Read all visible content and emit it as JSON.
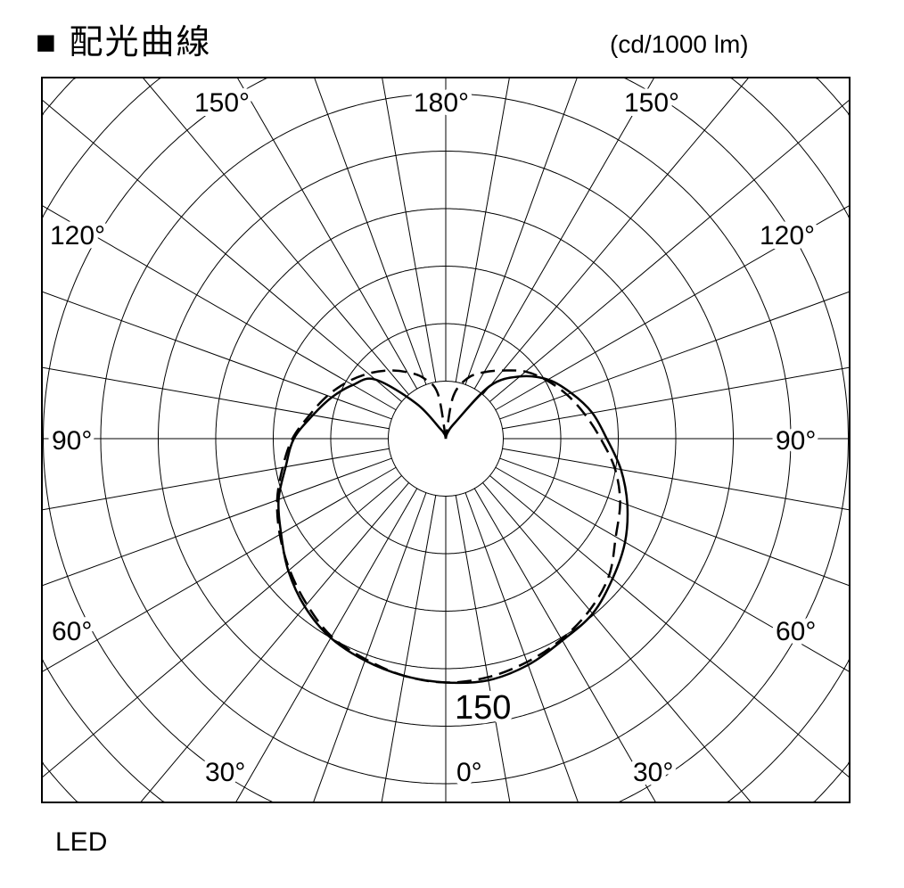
{
  "title": "■ 配光曲線",
  "unit": "(cd/1000 lm)",
  "note": "LED",
  "chart_data": {
    "type": "polar-line",
    "title": "配光曲線",
    "unit": "cd/1000 lm",
    "radial_tick_label": "150",
    "radial_tick_value": 150,
    "ring_step": 37.5,
    "angle_labels": {
      "top": [
        "150°",
        "180°",
        "150°"
      ],
      "left": [
        "120°",
        "90°",
        "60°"
      ],
      "right": [
        "120°",
        "90°",
        "60°"
      ],
      "bottom": [
        "30°",
        "0°",
        "30°"
      ]
    },
    "angle_grid_step_deg": 10,
    "grid": true,
    "angles": [
      0,
      10,
      20,
      30,
      40,
      50,
      60,
      70,
      80,
      90,
      100,
      110,
      120,
      130,
      140,
      150,
      160,
      170,
      180
    ],
    "series": [
      {
        "style": "solid",
        "color": "#000000",
        "left": [
          159,
          157,
          154,
          150,
          143,
          134,
          124,
          116,
          106,
          99,
          88,
          79,
          70,
          60,
          30,
          8,
          4,
          2,
          0
        ],
        "right": [
          159,
          160,
          157,
          152,
          149,
          142,
          135,
          126,
          116,
          105,
          97,
          87,
          77,
          63,
          45,
          12,
          5,
          2,
          0
        ]
      },
      {
        "style": "dashed",
        "color": "#000000",
        "left": [
          159,
          157,
          153,
          149,
          141,
          133,
          125,
          117,
          108,
          100,
          90,
          82,
          74,
          66,
          58,
          50,
          42,
          30,
          0
        ],
        "right": [
          159,
          158,
          155,
          151,
          146,
          139,
          128,
          121,
          112,
          101,
          92,
          84,
          76,
          68,
          58,
          50,
          42,
          28,
          0
        ]
      }
    ]
  }
}
